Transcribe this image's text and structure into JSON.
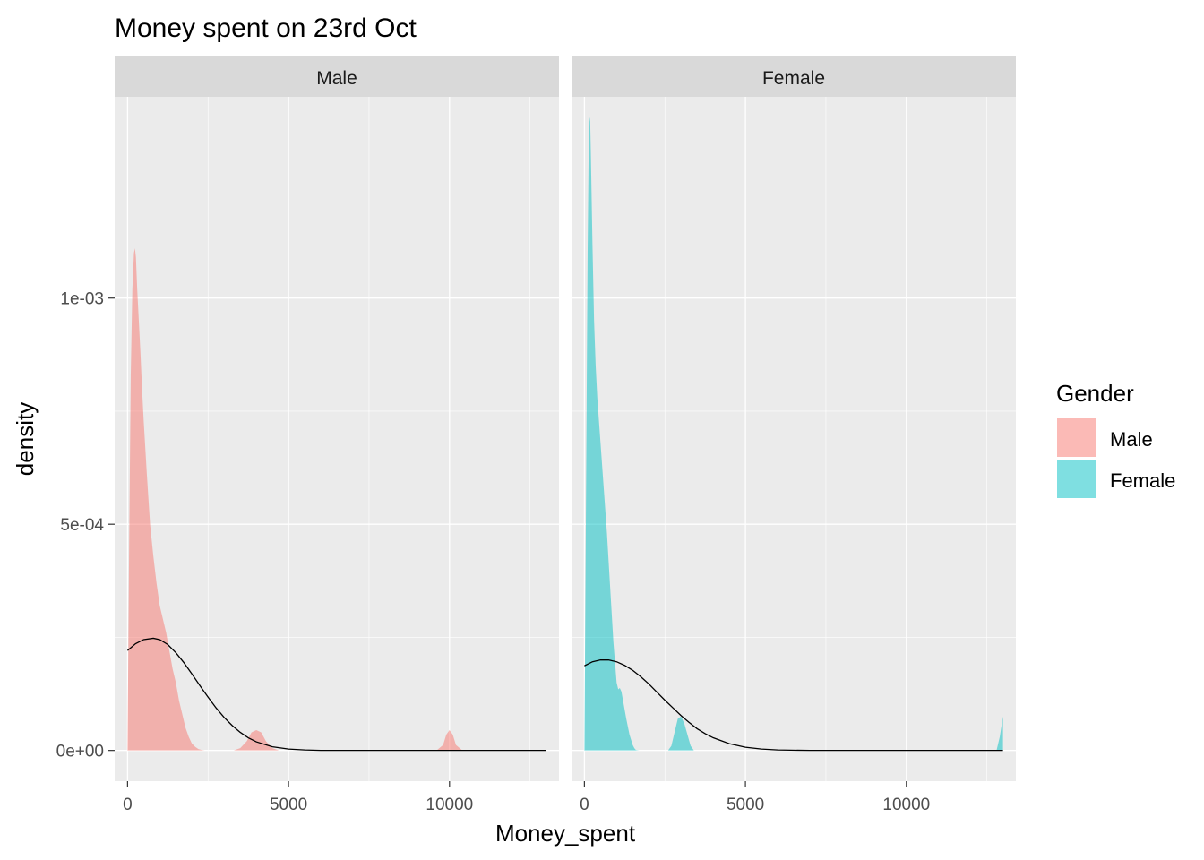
{
  "chart_data": {
    "type": "area",
    "title": "Money spent on 23rd Oct",
    "xlabel": "Money_spent",
    "ylabel": "density",
    "xlim": [
      -400,
      13400
    ],
    "ylim": [
      -6.8e-05,
      0.001445
    ],
    "x_ticks": [
      0,
      5000,
      10000
    ],
    "x_tick_labels": [
      "0",
      "5000",
      "10000"
    ],
    "y_ticks": [
      0,
      0.0005,
      0.001
    ],
    "y_tick_labels": [
      "0e+00",
      "5e-04",
      "1e-03"
    ],
    "grid": true,
    "legend": {
      "title": "Gender",
      "placement": "right",
      "entries": [
        "Male",
        "Female"
      ]
    },
    "colors": {
      "Male": "#F8766D",
      "Female": "#00BFC4",
      "panel_bg": "#EBEBEB",
      "strip_bg": "#D9D9D9",
      "grid": "#FFFFFF",
      "normal_curve": "#000000"
    },
    "panels": [
      {
        "strip": "Male",
        "density": {
          "x": [
            0,
            50,
            100,
            150,
            200,
            230,
            260,
            300,
            350,
            400,
            450,
            500,
            600,
            700,
            800,
            900,
            1000,
            1100,
            1200,
            1300,
            1400,
            1500,
            1600,
            1700,
            1800,
            1900,
            2000,
            2100,
            2200,
            2300,
            2400,
            3300,
            3500,
            3700,
            3850,
            4000,
            4150,
            4300,
            4500,
            4700,
            9600,
            9800,
            9900,
            10000,
            10100,
            10200,
            10400
          ],
          "y": [
            0,
            0.00045,
            0.00083,
            0.00102,
            0.0011,
            0.00111,
            0.00109,
            0.00102,
            0.00095,
            0.00088,
            0.0008,
            0.00073,
            0.00061,
            0.0005,
            0.00043,
            0.00037,
            0.00032,
            0.00029,
            0.00026,
            0.00022,
            0.00018,
            0.00015,
            0.00011,
            8e-05,
            5e-05,
            3e-05,
            1.5e-05,
            8e-06,
            3e-06,
            1e-06,
            0,
            0,
            5e-06,
            2e-05,
            4e-05,
            4.5e-05,
            4e-05,
            2e-05,
            5e-06,
            0,
            0,
            1.2e-05,
            3.5e-05,
            4.5e-05,
            3.5e-05,
            1.2e-05,
            0
          ]
        },
        "normal_curve": {
          "x": [
            0,
            250,
            500,
            800,
            1000,
            1250,
            1500,
            1750,
            2000,
            2250,
            2500,
            2750,
            3000,
            3250,
            3500,
            3750,
            4000,
            4500,
            5000,
            5500,
            6000,
            7000,
            8000,
            10000,
            13000
          ],
          "y": [
            0.000221,
            0.000236,
            0.000245,
            0.000248,
            0.000245,
            0.000234,
            0.000216,
            0.000194,
            0.000169,
            0.000143,
            0.000118,
            9.4e-05,
            7.3e-05,
            5.5e-05,
            4e-05,
            2.8e-05,
            1.9e-05,
            8e-06,
            3e-06,
            1e-06,
            0,
            0,
            0,
            0,
            0
          ]
        }
      },
      {
        "strip": "Female",
        "density": {
          "x": [
            0,
            50,
            100,
            140,
            160,
            180,
            200,
            250,
            300,
            350,
            400,
            500,
            600,
            700,
            800,
            900,
            1000,
            1050,
            1100,
            1150,
            1200,
            1300,
            1400,
            1500,
            1550,
            1600,
            1700,
            2600,
            2700,
            2800,
            2900,
            3000,
            3100,
            3200,
            3300,
            3400,
            12800,
            12900,
            13000
          ],
          "y": [
            0,
            0.00055,
            0.0011,
            0.00138,
            0.0014,
            0.00139,
            0.00132,
            0.00112,
            0.00095,
            0.00085,
            0.00078,
            0.00068,
            0.00058,
            0.00048,
            0.00036,
            0.00024,
            0.00015,
            0.000135,
            0.000138,
            0.00013,
            0.00011,
            7e-05,
            3.5e-05,
            1.2e-05,
            5e-06,
            1e-06,
            0,
            0,
            1e-05,
            4e-05,
            7e-05,
            7.5e-05,
            6e-05,
            3.5e-05,
            1e-05,
            0,
            0,
            3e-05,
            7.5e-05
          ]
        },
        "normal_curve": {
          "x": [
            0,
            250,
            500,
            750,
            1000,
            1250,
            1500,
            1750,
            2000,
            2250,
            2500,
            2750,
            3000,
            3250,
            3500,
            3750,
            4000,
            4500,
            5000,
            5500,
            6000,
            7000,
            8000,
            10000,
            13000
          ],
          "y": [
            0.000187,
            0.000196,
            0.0002,
            0.0002,
            0.000196,
            0.000188,
            0.000177,
            0.000163,
            0.000147,
            0.000129,
            0.000111,
            9.4e-05,
            7.7e-05,
            6.2e-05,
            4.8e-05,
            3.7e-05,
            2.8e-05,
            1.5e-05,
            7e-06,
            3e-06,
            1e-06,
            0,
            0,
            0,
            0
          ]
        }
      }
    ]
  }
}
